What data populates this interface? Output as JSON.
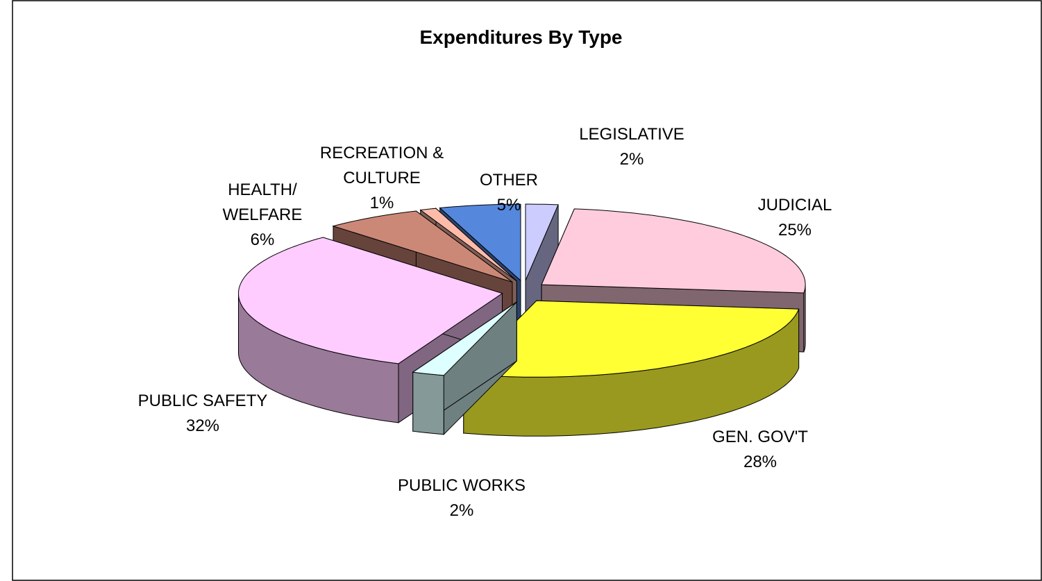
{
  "chart_data": {
    "type": "pie3d",
    "title": "Expenditures By Type",
    "categories": [
      "LEGISLATIVE",
      "JUDICIAL",
      "GEN. GOV'T",
      "PUBLIC WORKS",
      "PUBLIC SAFETY",
      "HEALTH/ WELFARE",
      "RECREATION & CULTURE",
      "OTHER"
    ],
    "values": [
      2,
      25,
      28,
      2,
      32,
      6,
      1,
      5
    ],
    "value_labels": [
      "2%",
      "25%",
      "28%",
      "2%",
      "32%",
      "6%",
      "1%",
      "5%"
    ],
    "colors": [
      "#ccccff",
      "#ffccdd",
      "#ffff33",
      "#ddffff",
      "#ffccff",
      "#cc8877",
      "#ffbbaa",
      "#5588dd"
    ]
  }
}
